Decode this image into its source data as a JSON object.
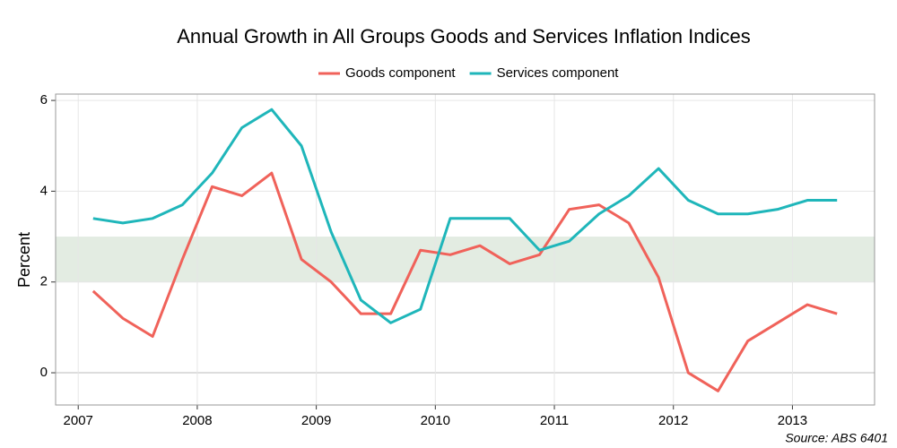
{
  "chart_data": {
    "type": "line",
    "title": "Annual Growth in All Groups Goods and Services Inflation Indices",
    "ylabel": "Percent",
    "caption": "Source: ABS 6401",
    "x": [
      2007.125,
      2007.375,
      2007.625,
      2007.875,
      2008.125,
      2008.375,
      2008.625,
      2008.875,
      2009.125,
      2009.375,
      2009.625,
      2009.875,
      2010.125,
      2010.375,
      2010.625,
      2010.875,
      2011.125,
      2011.375,
      2011.625,
      2011.875,
      2012.125,
      2012.375,
      2012.625,
      2012.875,
      2013.125,
      2013.375
    ],
    "series": [
      {
        "name": "Goods component",
        "color": "#f0625a",
        "values": [
          1.8,
          1.2,
          0.8,
          2.5,
          4.1,
          3.9,
          4.4,
          2.5,
          2.0,
          1.3,
          1.3,
          2.7,
          2.6,
          2.8,
          2.4,
          2.6,
          3.6,
          3.7,
          3.3,
          2.1,
          0.0,
          -0.4,
          0.7,
          1.1,
          1.5,
          1.3
        ]
      },
      {
        "name": "Services component",
        "color": "#1fb6ba",
        "values": [
          3.4,
          3.3,
          3.4,
          3.7,
          4.4,
          5.4,
          5.8,
          5.0,
          3.1,
          1.6,
          1.1,
          1.4,
          3.4,
          3.4,
          3.4,
          2.7,
          2.9,
          3.5,
          3.9,
          4.5,
          3.8,
          3.5,
          3.5,
          3.6,
          3.8,
          3.8
        ]
      }
    ],
    "band": [
      2,
      3
    ],
    "band_color": "#e3ece2",
    "xlim": [
      2006.81,
      2013.69
    ],
    "xticks": [
      2007,
      2008,
      2009,
      2010,
      2011,
      2012,
      2013
    ],
    "ylim": [
      -0.71,
      6.14
    ],
    "yticks": [
      0,
      2,
      4,
      6
    ],
    "grid": true,
    "legend": "top"
  }
}
